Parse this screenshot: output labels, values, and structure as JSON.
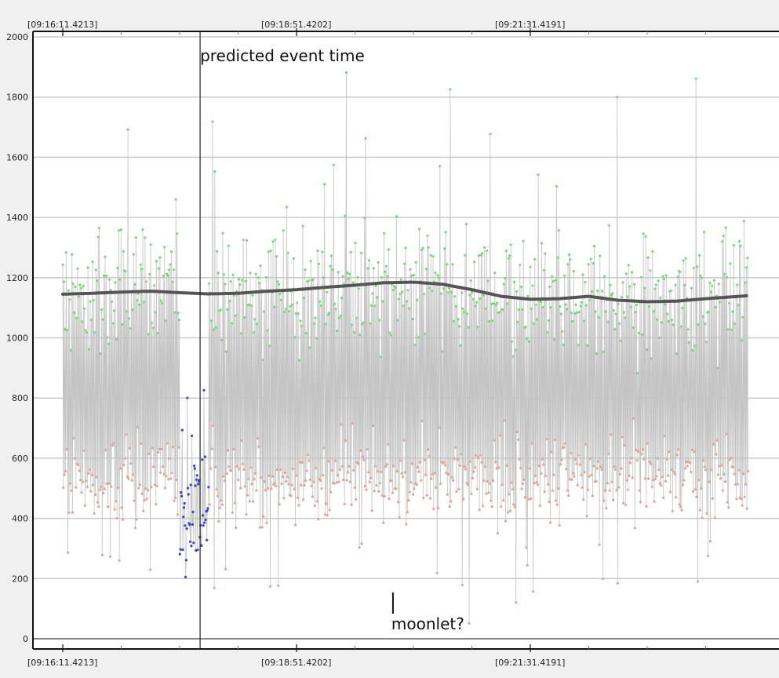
{
  "chart_data": {
    "type": "scatter",
    "title": "",
    "xlabel": "",
    "ylabel": "",
    "ylim": [
      0,
      2000
    ],
    "yticks": [
      0,
      200,
      400,
      600,
      800,
      1000,
      1200,
      1400,
      1600,
      1800,
      2000
    ],
    "grid": true,
    "legend": "none",
    "x_tick_labels": [
      "[09:16:11.4213]",
      "[09:18:51.4202]",
      "[09:21:31.4191]"
    ],
    "x_tick_seconds": [
      0,
      160,
      320
    ],
    "x_range_seconds": [
      0,
      469
    ],
    "colors": {
      "signal": "#7fd47f",
      "background": "#d9a898",
      "occultation": "#3a45c8",
      "connector": "#c4c4c4",
      "trend": "#555555"
    },
    "series": [
      {
        "role": "signal",
        "note_range": [
          800,
          1700
        ],
        "mean": 1145
      },
      {
        "role": "background",
        "note_range": [
          250,
          800
        ],
        "mean": 530
      },
      {
        "role": "occultation",
        "x_range_seconds": [
          80,
          100
        ],
        "value_range": [
          150,
          850
        ]
      },
      {
        "role": "trend",
        "x": [
          0,
          20,
          40,
          60,
          80,
          100,
          120,
          140,
          160,
          180,
          200,
          220,
          240,
          260,
          280,
          300,
          320,
          340,
          360,
          380,
          400,
          420,
          440,
          469
        ],
        "values": [
          1145,
          1148,
          1152,
          1155,
          1150,
          1146,
          1148,
          1155,
          1160,
          1168,
          1175,
          1183,
          1185,
          1178,
          1160,
          1138,
          1128,
          1130,
          1138,
          1125,
          1120,
          1122,
          1130,
          1140
        ]
      }
    ],
    "annotations": [
      {
        "text": "predicted event time",
        "x_seconds": 94
      },
      {
        "text": "moonlet?",
        "x_seconds": 226,
        "y": 185
      }
    ]
  }
}
